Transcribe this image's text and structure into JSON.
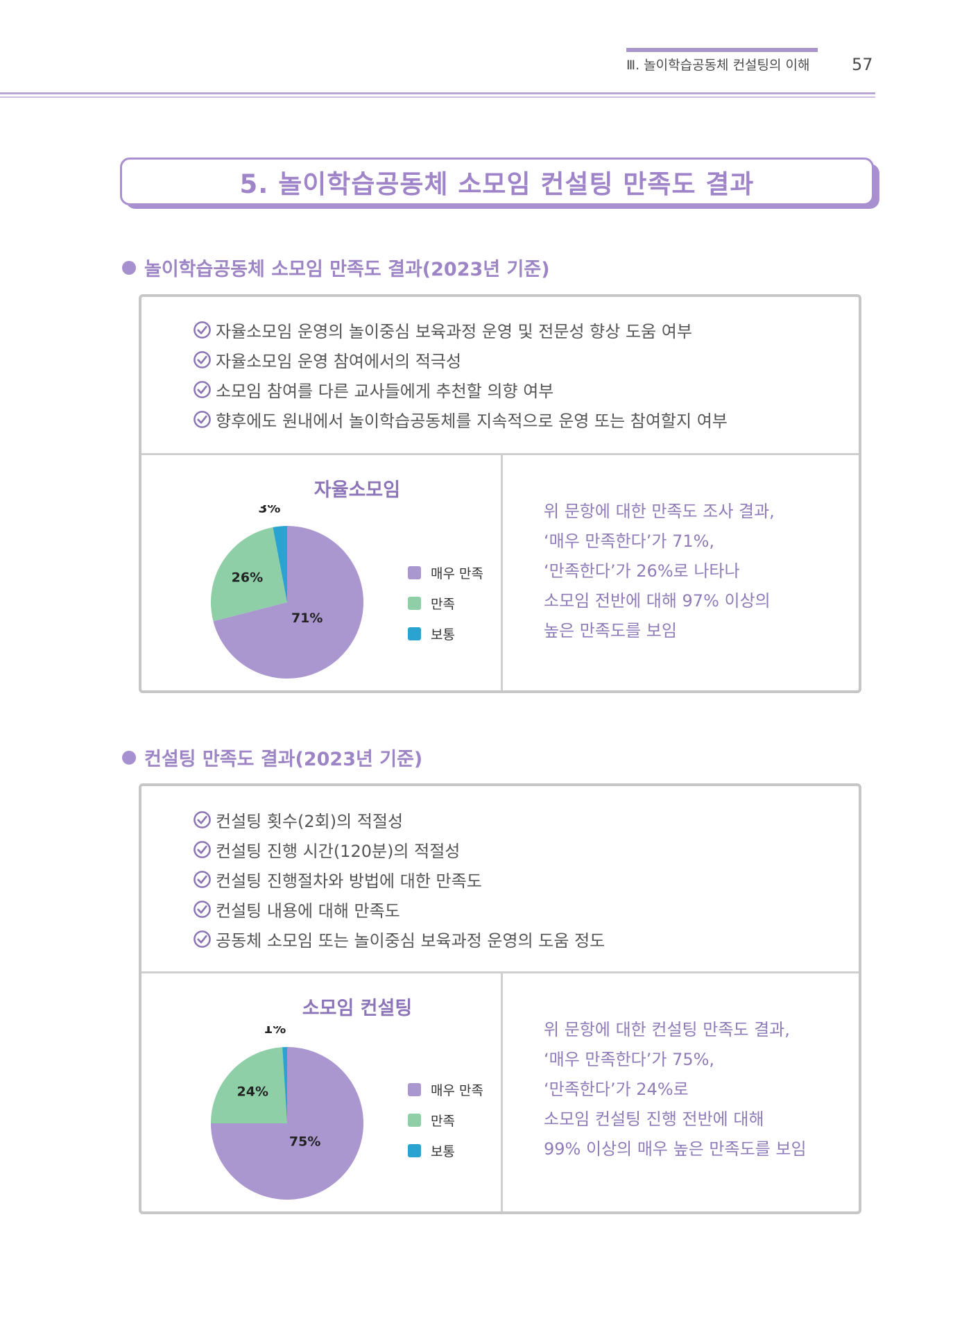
{
  "header": {
    "chapter": "Ⅲ. 놀이학습공동체 컨설팅의 이해",
    "page_number": "57"
  },
  "section_title": "5. 놀이학습공동체 소모임 컨설팅 만족도 결과",
  "colors": {
    "very_satisfied": "#ab97cf",
    "satisfied": "#8ecfa7",
    "neutral": "#2aa3d1",
    "accent": "#9c84c5"
  },
  "blocks": [
    {
      "heading": "놀이학습공동체 소모임 만족도 결과(2023년 기준)",
      "criteria": [
        "자율소모임 운영의 놀이중심 보육과정 운영 및 전문성 향상 도움 여부",
        "자율소모임 운영 참여에서의 적극성",
        "소모임 참여를 다른 교사들에게 추천할 의향 여부",
        "향후에도 원내에서 놀이학습공동체를 지속적으로 운영 또는 참여할지 여부"
      ],
      "summary": [
        "위 문항에 대한 만족도 조사 결과,",
        "‘매우 만족한다’가 71%,",
        "‘만족한다’가 26%로 나타나",
        "소모임 전반에 대해 97% 이상의",
        "높은 만족도를 보임"
      ]
    },
    {
      "heading": "컨설팅 만족도 결과(2023년 기준)",
      "criteria": [
        "컨설팅 횟수(2회)의 적절성",
        "컨설팅 진행 시간(120분)의 적절성",
        "컨설팅 진행절차와 방법에 대한 만족도",
        "컨설팅 내용에 대해 만족도",
        "공동체 소모임 또는 놀이중심 보육과정 운영의 도움 정도"
      ],
      "summary": [
        "위 문항에 대한 컨설팅 만족도 결과,",
        "‘매우 만족한다’가 75%,",
        "‘만족한다’가 24%로",
        "소모임 컨설팅 진행 전반에 대해",
        "99% 이상의 매우 높은 만족도를 보임"
      ]
    }
  ],
  "chart_data": [
    {
      "type": "pie",
      "title": "자율소모임",
      "categories": [
        "매우 만족",
        "만족",
        "보통"
      ],
      "values": [
        71,
        26,
        3
      ],
      "labels": [
        "71%",
        "26%",
        "3%"
      ],
      "colors": [
        "#ab97cf",
        "#8ecfa7",
        "#2aa3d1"
      ],
      "legend": "right"
    },
    {
      "type": "pie",
      "title": "소모임 컨설팅",
      "categories": [
        "매우 만족",
        "만족",
        "보통"
      ],
      "values": [
        75,
        24,
        1
      ],
      "labels": [
        "75%",
        "24%",
        "1%"
      ],
      "colors": [
        "#ab97cf",
        "#8ecfa7",
        "#2aa3d1"
      ],
      "legend": "right"
    }
  ]
}
